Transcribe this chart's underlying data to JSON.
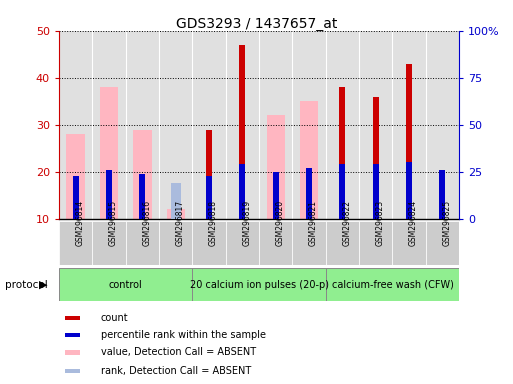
{
  "title": "GDS3293 / 1437657_at",
  "samples": [
    "GSM296814",
    "GSM296815",
    "GSM296816",
    "GSM296817",
    "GSM296818",
    "GSM296819",
    "GSM296820",
    "GSM296821",
    "GSM296822",
    "GSM296823",
    "GSM296824",
    "GSM296825"
  ],
  "count_values": [
    null,
    null,
    null,
    null,
    29,
    47,
    null,
    null,
    38,
    36,
    43,
    null
  ],
  "percentile_values": [
    23,
    26,
    24,
    null,
    23,
    29,
    25,
    27,
    29,
    29,
    30,
    26
  ],
  "absent_value": [
    28,
    38,
    29,
    12,
    null,
    null,
    32,
    35,
    null,
    null,
    null,
    null
  ],
  "absent_rank": [
    null,
    null,
    null,
    19,
    null,
    null,
    null,
    null,
    null,
    null,
    null,
    null
  ],
  "ylim_left": [
    10,
    50
  ],
  "ylim_right": [
    0,
    100
  ],
  "left_ticks": [
    10,
    20,
    30,
    40,
    50
  ],
  "right_ticks": [
    0,
    25,
    50,
    75,
    100
  ],
  "right_tick_labels": [
    "0",
    "25",
    "50",
    "75",
    "100%"
  ],
  "protocol_groups": [
    {
      "label": "control",
      "start": 0,
      "end": 4,
      "color": "#90EE90"
    },
    {
      "label": "20 calcium ion pulses (20-p)",
      "start": 4,
      "end": 8,
      "color": "#90EE90"
    },
    {
      "label": "calcium-free wash (CFW)",
      "start": 8,
      "end": 12,
      "color": "#90EE90"
    }
  ],
  "legend_items": [
    {
      "label": "count",
      "color": "#CC0000"
    },
    {
      "label": "percentile rank within the sample",
      "color": "#0000CC"
    },
    {
      "label": "value, Detection Call = ABSENT",
      "color": "#FFB6C1"
    },
    {
      "label": "rank, Detection Call = ABSENT",
      "color": "#AABBDD"
    }
  ],
  "count_color": "#CC0000",
  "percentile_color": "#0000CC",
  "absent_value_color": "#FFB6C1",
  "absent_rank_color": "#AABBDD",
  "background_color": "#ffffff",
  "left_axis_color": "#CC0000",
  "right_axis_color": "#0000CC",
  "tick_label_bg": "#CCCCCC"
}
